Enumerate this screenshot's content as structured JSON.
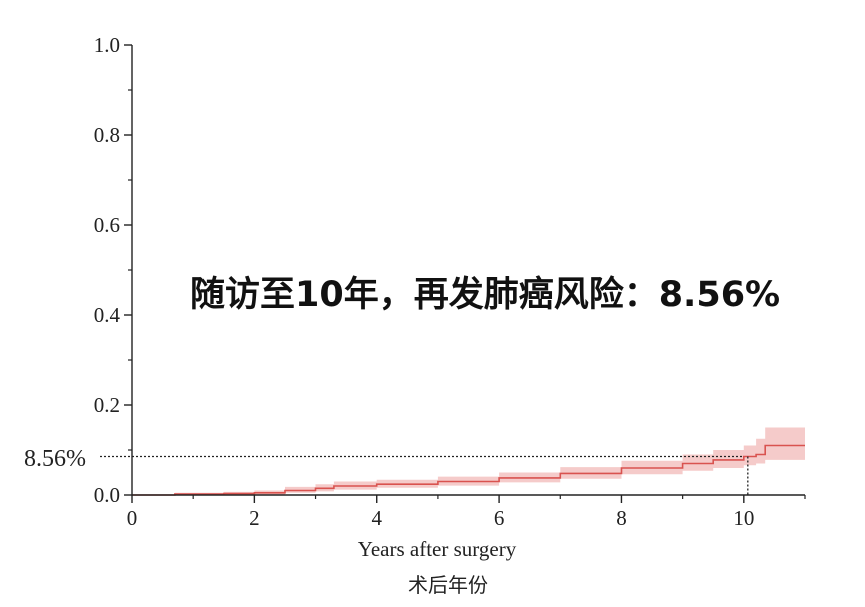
{
  "chart_data": {
    "type": "line",
    "title": "随访至10年，再发肺癌风险：8.56%",
    "xlabel": "Years after surgery",
    "xlabel_secondary": "术后年份",
    "xlim": [
      0,
      11
    ],
    "ylim": [
      0,
      1
    ],
    "x_ticks": [
      "0",
      "2",
      "4",
      "6",
      "8",
      "10"
    ],
    "y_ticks": [
      "0.0",
      "0.2",
      "0.4",
      "0.6",
      "0.8",
      "1.0"
    ],
    "grid": false,
    "reference": {
      "label": "8.56%",
      "x": 10,
      "y": 0.0856
    },
    "series": [
      {
        "color": "#d9534f",
        "band_color": "#f1b5b3",
        "x": [
          0,
          0.7,
          1.5,
          2.0,
          2.5,
          3.0,
          3.3,
          4.0,
          5.0,
          6.0,
          7.0,
          8.0,
          9.0,
          9.5,
          10.0,
          10.2,
          10.35,
          11.0
        ],
        "y": [
          0,
          0.002,
          0.003,
          0.005,
          0.01,
          0.015,
          0.02,
          0.024,
          0.03,
          0.038,
          0.048,
          0.06,
          0.07,
          0.078,
          0.0856,
          0.09,
          0.11,
          0.11
        ],
        "lower": [
          0,
          0.0,
          0.0,
          0.001,
          0.005,
          0.008,
          0.012,
          0.016,
          0.021,
          0.028,
          0.036,
          0.046,
          0.054,
          0.06,
          0.066,
          0.07,
          0.078,
          0.078
        ],
        "upper": [
          0,
          0.005,
          0.007,
          0.01,
          0.018,
          0.024,
          0.03,
          0.034,
          0.041,
          0.05,
          0.062,
          0.076,
          0.09,
          0.1,
          0.11,
          0.125,
          0.15,
          0.15
        ]
      }
    ]
  }
}
